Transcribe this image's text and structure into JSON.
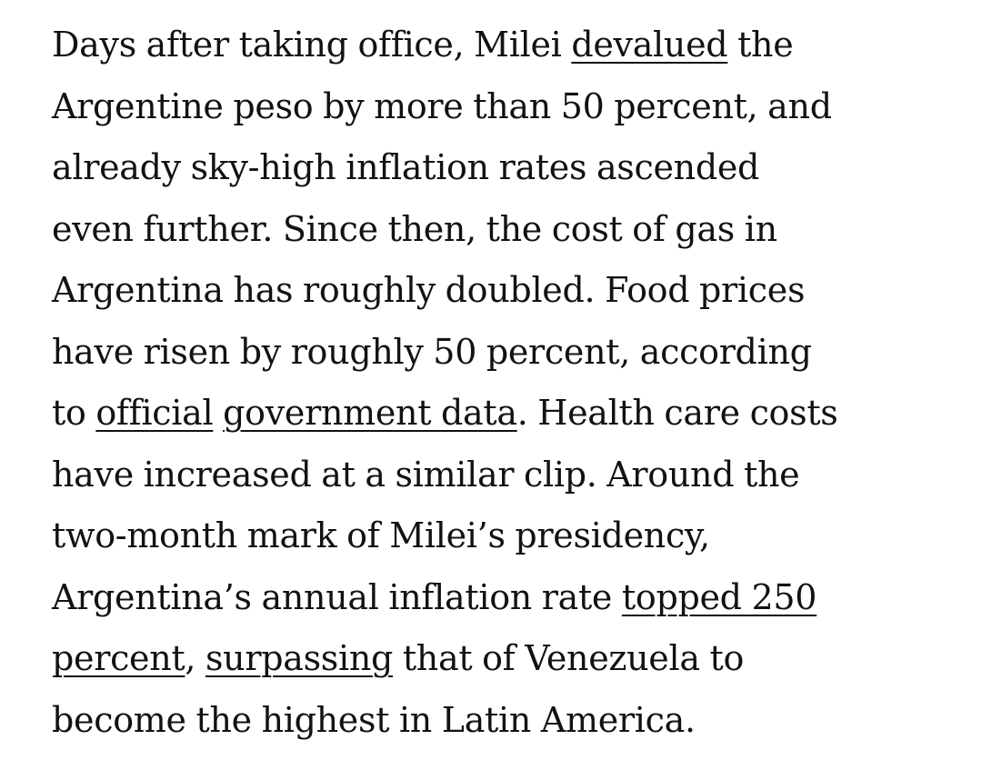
{
  "article": {
    "paragraph": {
      "l1_a": "Days after taking office, Milei ",
      "link_devalued": "devalued",
      "l1_b": " the",
      "l2": "Argentine peso by more than 50 percent, and",
      "l3": "already sky-high inflation rates ascended",
      "l4": "even further. Since then, the cost of gas in",
      "l5": "Argentina has roughly doubled. Food prices",
      "l6": "have risen by roughly 50 percent, according",
      "l7_a": "to ",
      "link_official": "official",
      "l7_space": " ",
      "link_government_data": "government data",
      "l7_b": ". Health care costs",
      "l8": "have increased at a similar clip. Around the",
      "l9": "two-month mark of Milei’s presidency,",
      "l10_a": "Argentina’s annual inflation rate ",
      "link_topped_a": "topped 250",
      "link_topped_b": "percent",
      "l11_a": ", ",
      "link_surpassing": "surpassing",
      "l11_b": " that of Venezuela to",
      "l12": "become the highest in Latin America."
    }
  }
}
